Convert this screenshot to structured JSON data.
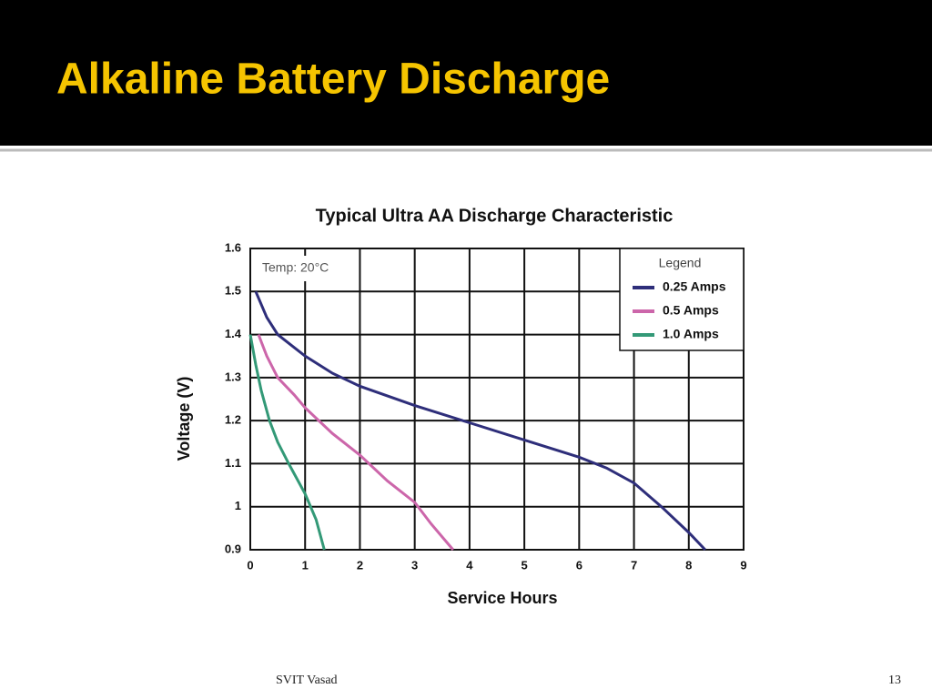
{
  "slide": {
    "title": "Alkaline Battery Discharge",
    "footer": "SVIT Vasad",
    "page_number": "13"
  },
  "chart_data": {
    "type": "line",
    "title": "Typical Ultra AA Discharge Characteristic",
    "x_label": "Service Hours",
    "y_label": "Voltage (V)",
    "annotation": "Temp: 20°C",
    "legend_title": "Legend",
    "legend": "upper right",
    "grid": true,
    "xlim": [
      0,
      9
    ],
    "xticks": [
      0,
      1,
      2,
      3,
      4,
      5,
      6,
      7,
      8,
      9
    ],
    "ylim": [
      0.9,
      1.6
    ],
    "yticks": [
      0.9,
      1,
      1.1,
      1.2,
      1.3,
      1.4,
      1.5,
      1.6
    ],
    "series": [
      {
        "name": "0.25 Amps",
        "color": "#2e2e7a",
        "x": [
          0.1,
          0.3,
          0.5,
          1,
          1.5,
          2,
          3,
          4,
          5,
          6,
          6.5,
          7,
          7.5,
          8,
          8.3
        ],
        "values": [
          1.5,
          1.44,
          1.4,
          1.35,
          1.31,
          1.28,
          1.235,
          1.195,
          1.155,
          1.115,
          1.09,
          1.055,
          1.0,
          0.94,
          0.9
        ]
      },
      {
        "name": "0.5 Amps",
        "color": "#cc66aa",
        "x": [
          0.15,
          0.3,
          0.5,
          0.8,
          1,
          1.5,
          2,
          2.5,
          3,
          3.3,
          3.7
        ],
        "values": [
          1.4,
          1.35,
          1.3,
          1.26,
          1.23,
          1.17,
          1.12,
          1.06,
          1.01,
          0.96,
          0.9
        ]
      },
      {
        "name": "1.0 Amps",
        "color": "#339977",
        "x": [
          0,
          0.1,
          0.2,
          0.35,
          0.5,
          0.7,
          1,
          1.2,
          1.35
        ],
        "values": [
          1.4,
          1.33,
          1.27,
          1.2,
          1.15,
          1.1,
          1.03,
          0.97,
          0.9
        ]
      }
    ]
  }
}
